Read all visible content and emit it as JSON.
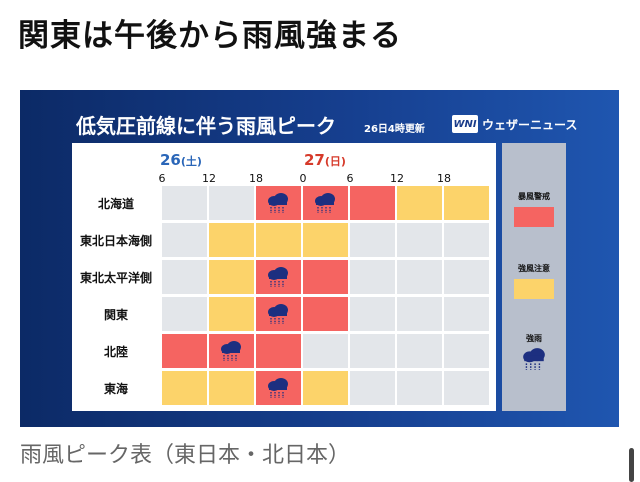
{
  "headline": "関東は午後から雨風強まる",
  "figure": {
    "title": "低気圧前線に伴う雨風ピーク",
    "updated": "26日4時更新",
    "brand_logo": "WNI",
    "brand_name": "ウェザーニュース",
    "days": [
      {
        "num": "26",
        "paren": "(土)"
      },
      {
        "num": "27",
        "paren": "(日)"
      }
    ],
    "hour_ticks": [
      "6",
      "12",
      "18",
      "0",
      "6",
      "12",
      "18"
    ],
    "rows": [
      {
        "label": "北海道",
        "levels": [
          0,
          0,
          2,
          2,
          2,
          1,
          1
        ],
        "rain": [
          false,
          false,
          true,
          true,
          false,
          false,
          false
        ]
      },
      {
        "label": "東北日本海側",
        "levels": [
          0,
          1,
          1,
          1,
          0,
          0,
          0
        ],
        "rain": [
          false,
          false,
          false,
          false,
          false,
          false,
          false
        ]
      },
      {
        "label": "東北太平洋側",
        "levels": [
          0,
          1,
          2,
          2,
          0,
          0,
          0
        ],
        "rain": [
          false,
          false,
          true,
          false,
          false,
          false,
          false
        ]
      },
      {
        "label": "関東",
        "levels": [
          0,
          1,
          2,
          2,
          0,
          0,
          0
        ],
        "rain": [
          false,
          false,
          true,
          false,
          false,
          false,
          false
        ]
      },
      {
        "label": "北陸",
        "levels": [
          2,
          2,
          2,
          0,
          0,
          0,
          0
        ],
        "rain": [
          false,
          true,
          false,
          false,
          false,
          false,
          false
        ]
      },
      {
        "label": "東海",
        "levels": [
          1,
          1,
          2,
          1,
          0,
          0,
          0
        ],
        "rain": [
          false,
          false,
          true,
          false,
          false,
          false,
          false
        ]
      }
    ],
    "legend": {
      "storm_warning": "暴風警戒",
      "wind_advisory": "強風注意",
      "heavy_rain": "強雨"
    },
    "colors": {
      "none": "#e3e6ea",
      "advisory": "#fcd36a",
      "warning": "#f56461"
    }
  },
  "caption": "雨風ピーク表（東日本・北日本）"
}
